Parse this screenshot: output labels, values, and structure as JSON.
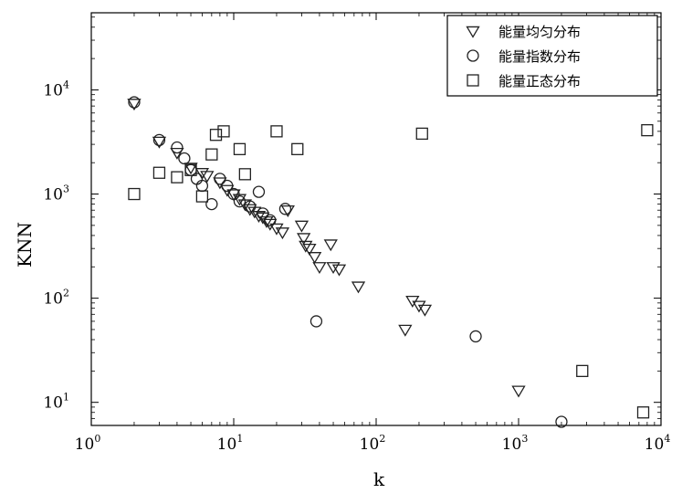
{
  "chart_data": {
    "type": "scatter",
    "xlabel": "k",
    "ylabel": "KNN",
    "xscale": "log",
    "yscale": "log",
    "xlim": [
      1,
      10000
    ],
    "ylim": [
      6,
      55000
    ],
    "x_ticks": [
      {
        "base": "10",
        "exp": "0",
        "value": 1
      },
      {
        "base": "10",
        "exp": "1",
        "value": 10
      },
      {
        "base": "10",
        "exp": "2",
        "value": 100
      },
      {
        "base": "10",
        "exp": "3",
        "value": 1000
      },
      {
        "base": "10",
        "exp": "4",
        "value": 10000
      }
    ],
    "y_ticks": [
      {
        "base": "10",
        "exp": "1",
        "value": 10
      },
      {
        "base": "10",
        "exp": "2",
        "value": 100
      },
      {
        "base": "10",
        "exp": "3",
        "value": 1000
      },
      {
        "base": "10",
        "exp": "4",
        "value": 10000
      }
    ],
    "grid": false,
    "legend_position": "top-right",
    "series": [
      {
        "name": "能量均匀分布",
        "marker": "triangle-down",
        "points": [
          [
            2,
            7400
          ],
          [
            3,
            3200
          ],
          [
            4,
            2500
          ],
          [
            5,
            1800
          ],
          [
            6,
            1600
          ],
          [
            6.5,
            1500
          ],
          [
            8,
            1300
          ],
          [
            9,
            1100
          ],
          [
            10,
            1000
          ],
          [
            11,
            900
          ],
          [
            12,
            800
          ],
          [
            13,
            720
          ],
          [
            14,
            680
          ],
          [
            15,
            620
          ],
          [
            16,
            600
          ],
          [
            17,
            550
          ],
          [
            18,
            520
          ],
          [
            20,
            470
          ],
          [
            22,
            430
          ],
          [
            24,
            700
          ],
          [
            30,
            500
          ],
          [
            31,
            380
          ],
          [
            32,
            320
          ],
          [
            34,
            300
          ],
          [
            37,
            250
          ],
          [
            40,
            200
          ],
          [
            48,
            330
          ],
          [
            50,
            200
          ],
          [
            55,
            190
          ],
          [
            75,
            130
          ],
          [
            160,
            50
          ],
          [
            180,
            95
          ],
          [
            200,
            85
          ],
          [
            220,
            78
          ],
          [
            1000,
            13
          ]
        ]
      },
      {
        "name": "能量指数分布",
        "marker": "circle",
        "points": [
          [
            2,
            7600
          ],
          [
            3,
            3300
          ],
          [
            4,
            2800
          ],
          [
            4.5,
            2200
          ],
          [
            5,
            1700
          ],
          [
            5.5,
            1400
          ],
          [
            6,
            1200
          ],
          [
            7,
            800
          ],
          [
            8,
            1400
          ],
          [
            9,
            1200
          ],
          [
            10,
            1000
          ],
          [
            11,
            850
          ],
          [
            13,
            760
          ],
          [
            15,
            1050
          ],
          [
            16,
            650
          ],
          [
            18,
            560
          ],
          [
            23,
            720
          ],
          [
            38,
            60
          ],
          [
            500,
            43
          ],
          [
            2000,
            6.5
          ]
        ]
      },
      {
        "name": "能量正态分布",
        "marker": "square",
        "points": [
          [
            2,
            1000
          ],
          [
            3,
            1600
          ],
          [
            4,
            1450
          ],
          [
            5,
            1700
          ],
          [
            6,
            950
          ],
          [
            7,
            2400
          ],
          [
            7.5,
            3700
          ],
          [
            8.5,
            4000
          ],
          [
            11,
            2700
          ],
          [
            12,
            1550
          ],
          [
            20,
            4000
          ],
          [
            28,
            2700
          ],
          [
            210,
            3800
          ],
          [
            2800,
            20
          ],
          [
            7500,
            8
          ],
          [
            8000,
            4100
          ]
        ]
      }
    ]
  }
}
